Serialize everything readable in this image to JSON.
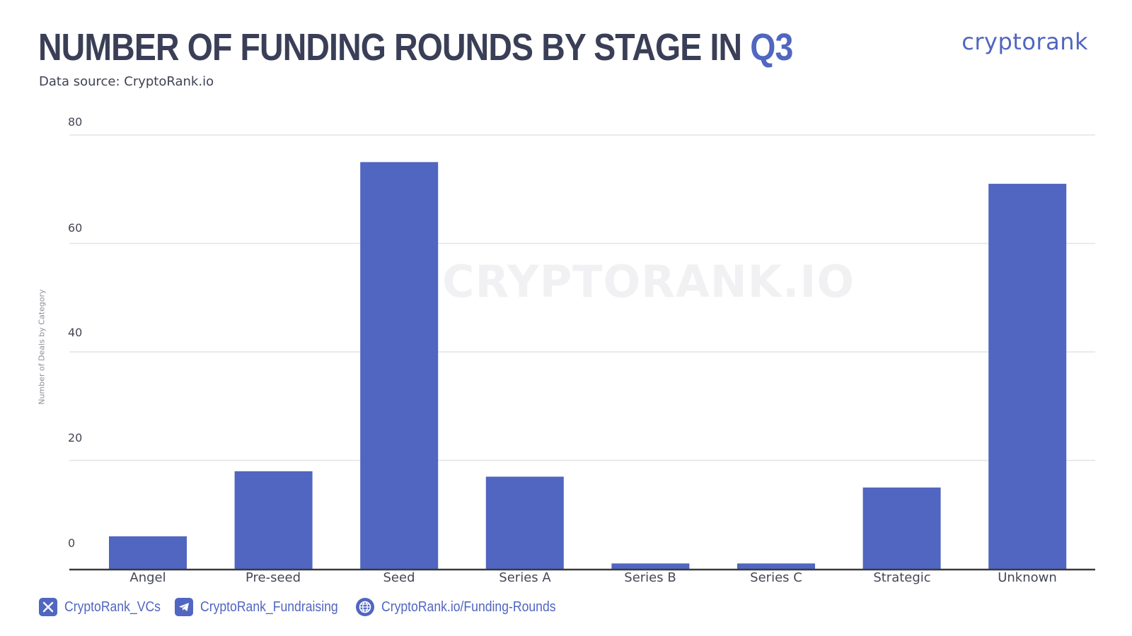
{
  "header": {
    "title_main": "NUMBER OF FUNDING ROUNDS BY STAGE IN ",
    "title_accent": "Q3",
    "subtitle": "Data source: CryptoRank.io",
    "logo": "cryptorank"
  },
  "watermark": "CRYPTORANK.IO",
  "colors": {
    "bar": "#5066c0",
    "accent": "#5066c0",
    "title": "#3a3f57",
    "grid": "#e3e3e6",
    "axis": "#3a3a3a"
  },
  "chart_data": {
    "type": "bar",
    "categories": [
      "Angel",
      "Pre-seed",
      "Seed",
      "Series A",
      "Series B",
      "Series C",
      "Strategic",
      "Unknown"
    ],
    "values": [
      6,
      18,
      75,
      17,
      1,
      1,
      15,
      71
    ],
    "ylabel": "Number of Deals by Category",
    "ylim": [
      0,
      80
    ],
    "yticks": [
      "0",
      "20",
      "40",
      "60",
      "80"
    ],
    "grid": true,
    "legend": "none"
  },
  "footer": {
    "items": [
      {
        "icon": "x-icon",
        "label": "CryptoRank_VCs"
      },
      {
        "icon": "telegram-icon",
        "label": "CryptoRank_Fundraising"
      },
      {
        "icon": "globe-icon",
        "label": "CryptoRank.io/Funding-Rounds"
      }
    ]
  }
}
